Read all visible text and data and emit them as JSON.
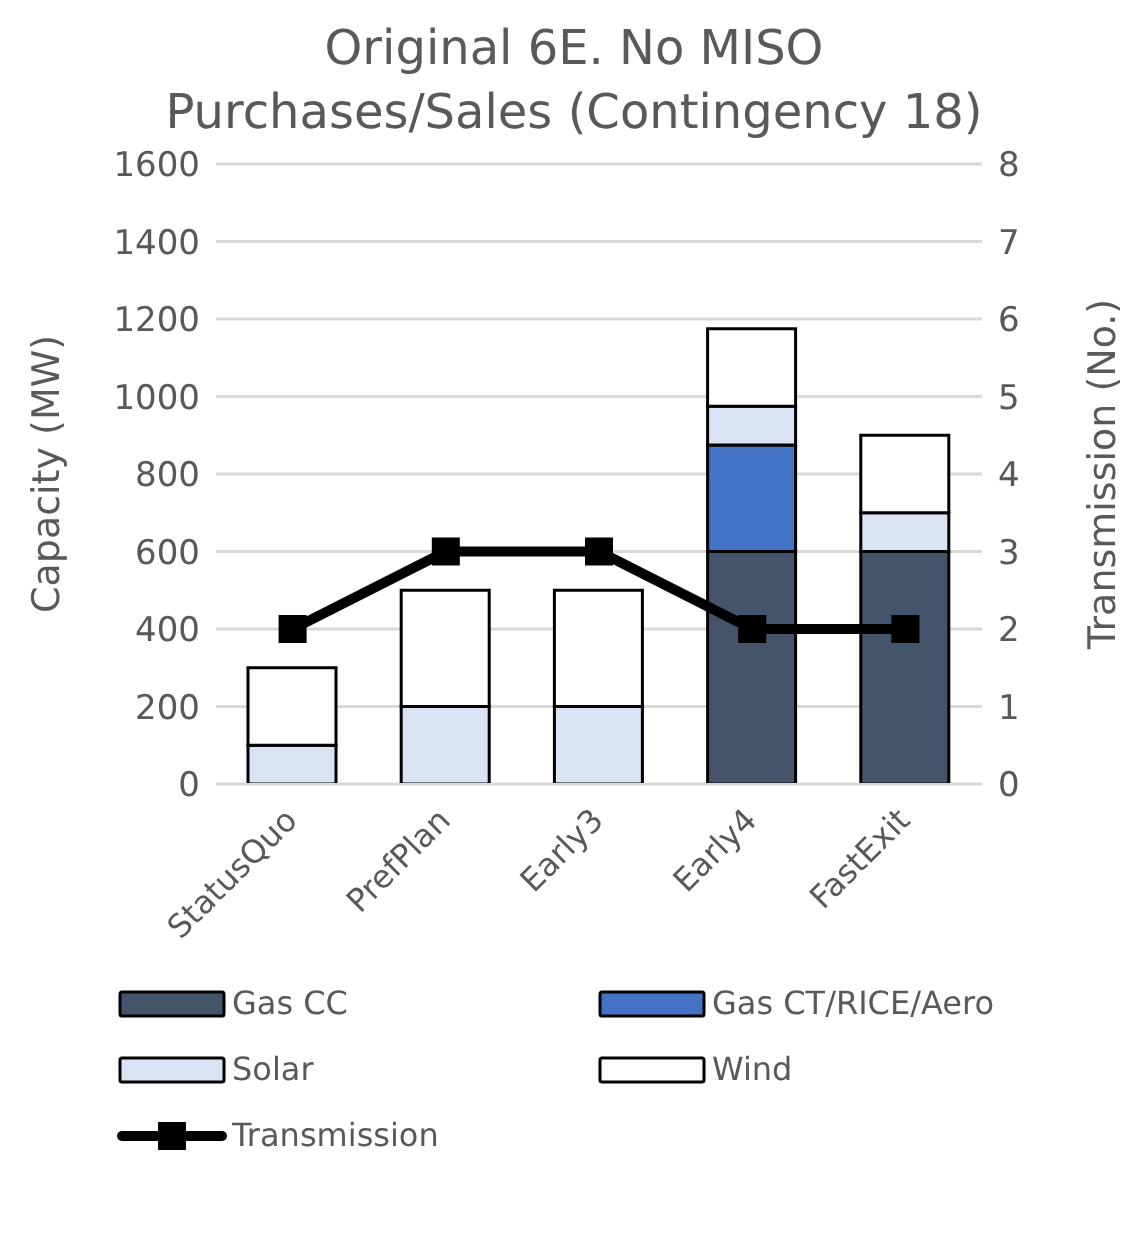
{
  "chart_data": {
    "type": "bar",
    "title": "Original 6E. No MISO Purchases/Sales (Contingency 18)",
    "ylabel": "Capacity (MW)",
    "y2label": "Transmission (No.)",
    "categories": [
      "StatusQuo",
      "PrefPlan",
      "Early3",
      "Early4",
      "FastExit"
    ],
    "stacked": true,
    "series": [
      {
        "name": "Gas CC",
        "color": "#44546a",
        "values": [
          0,
          0,
          0,
          600,
          600
        ]
      },
      {
        "name": "Gas CT/RICE/Aero",
        "color": "#4472c4",
        "values": [
          0,
          0,
          0,
          275,
          0
        ]
      },
      {
        "name": "Solar",
        "color": "#dae3f3",
        "values": [
          100,
          200,
          200,
          100,
          100
        ]
      },
      {
        "name": "Wind",
        "color": "#ffffff",
        "values": [
          200,
          300,
          300,
          200,
          200
        ]
      },
      {
        "name": "Transmission",
        "type": "line",
        "axis": "y2",
        "color": "#000000",
        "marker": "square",
        "values": [
          2,
          3,
          3,
          2,
          2
        ]
      }
    ],
    "ylim": [
      0,
      1600
    ],
    "yticks": [
      0,
      200,
      400,
      600,
      800,
      1000,
      1200,
      1400,
      1600
    ],
    "y2lim": [
      0,
      8
    ],
    "y2ticks": [
      0,
      1,
      2,
      3,
      4,
      5,
      6,
      7,
      8
    ],
    "grid": "y",
    "legend": "bottom"
  }
}
